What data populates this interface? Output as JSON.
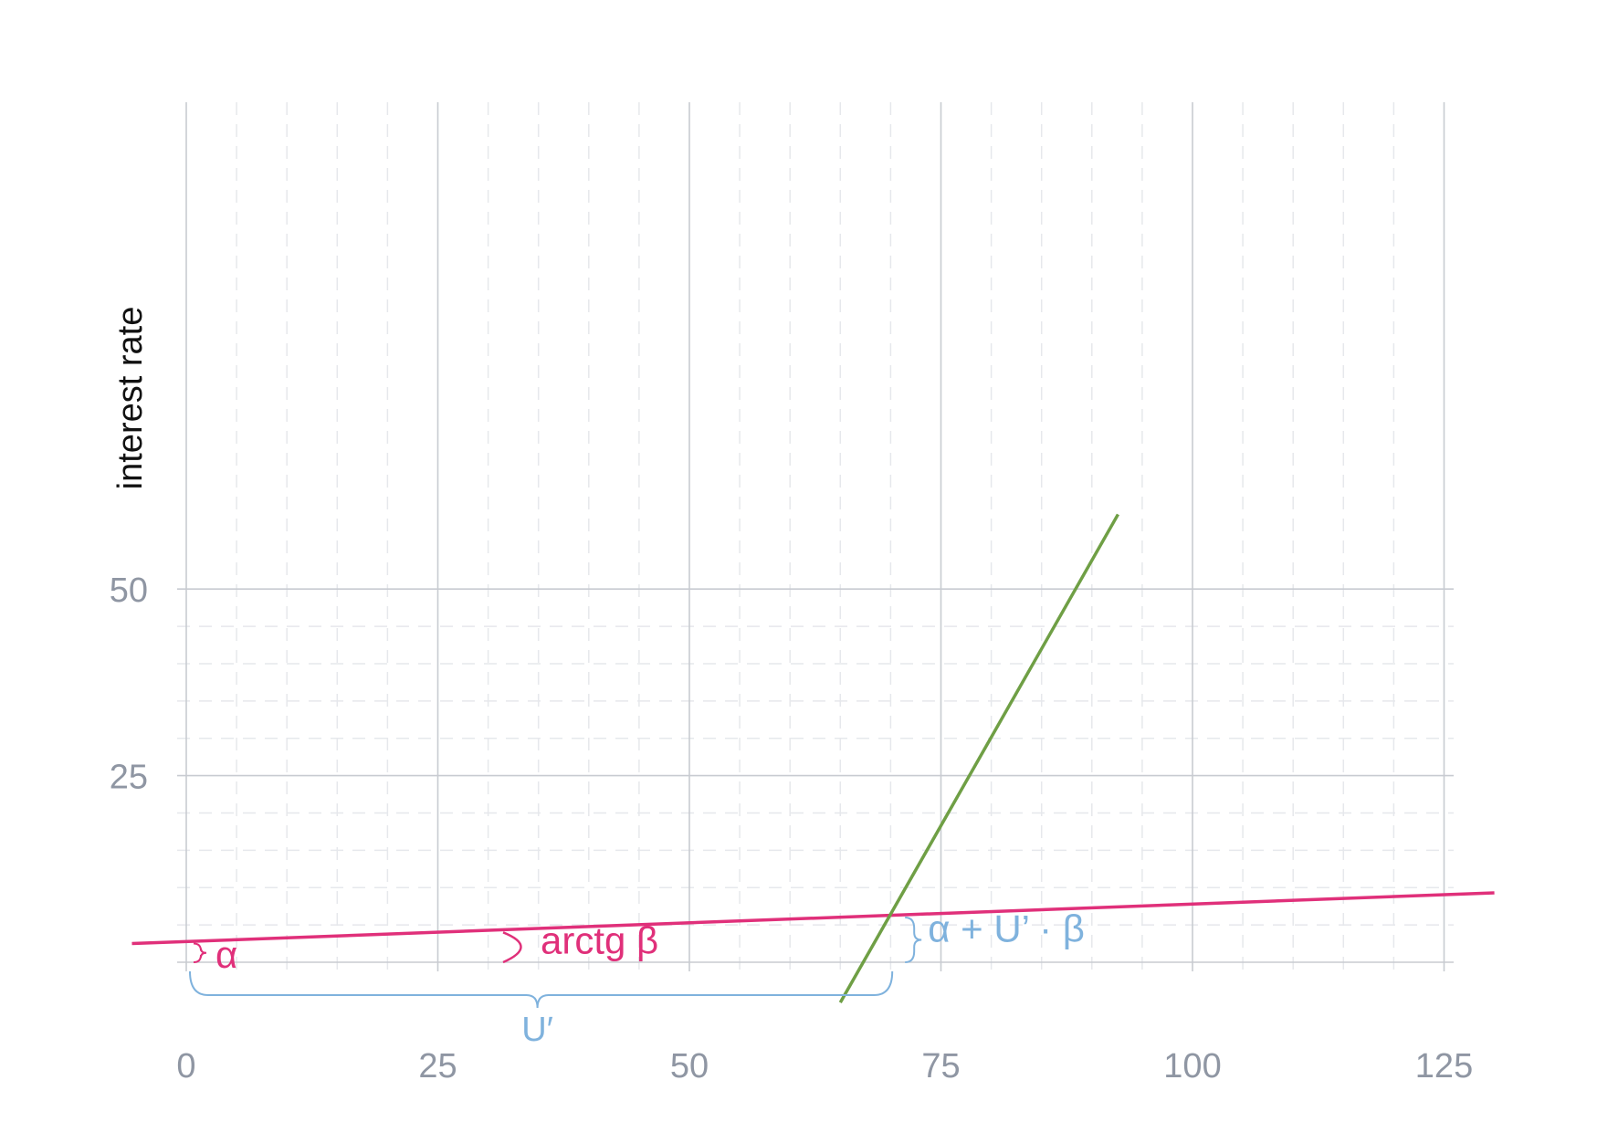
{
  "chart_data": {
    "type": "line",
    "title": "",
    "xlabel": "",
    "ylabel": "interest rate",
    "xlim": [
      -5.4,
      130
    ],
    "ylim": [
      -5.4,
      60
    ],
    "x_ticks": [
      0,
      25,
      50,
      75,
      100,
      125
    ],
    "x_tick_labels": [
      "0",
      "25",
      "50",
      "75",
      "100",
      "125"
    ],
    "y_ticks": [
      25,
      50
    ],
    "y_tick_labels": [
      "25",
      "50"
    ],
    "x_minor_ticks": [
      5,
      10,
      15,
      20,
      30,
      35,
      40,
      45,
      55,
      60,
      65,
      70,
      80,
      85,
      90,
      95,
      105,
      110,
      115,
      120
    ],
    "y_minor_ticks": [
      5,
      10,
      15,
      20,
      30,
      35,
      40,
      45
    ],
    "grid": true,
    "series": [
      {
        "color": "#e0307a",
        "x": [
          -5.4,
          130
        ],
        "y": [
          2.5,
          9.3
        ]
      },
      {
        "color": "#6f9f45",
        "x": [
          65,
          92.6
        ],
        "y": [
          -5.4,
          60
        ]
      }
    ],
    "annotations": {
      "alpha": "α",
      "arctg_beta": "arctg β",
      "intercept_sum": "α + U’ · β",
      "u_prime": "U′",
      "u_prime_value": 69.8,
      "alpha_value": 2.5,
      "intersection_y": 6.0
    },
    "colors": {
      "pink": "#e0307a",
      "green": "#6f9f45",
      "blue_annotation": "#7fb2dd",
      "major_grid": "#c8cbd1",
      "minor_grid": "#e6e8ec",
      "tick_text": "#8f96a3"
    }
  }
}
